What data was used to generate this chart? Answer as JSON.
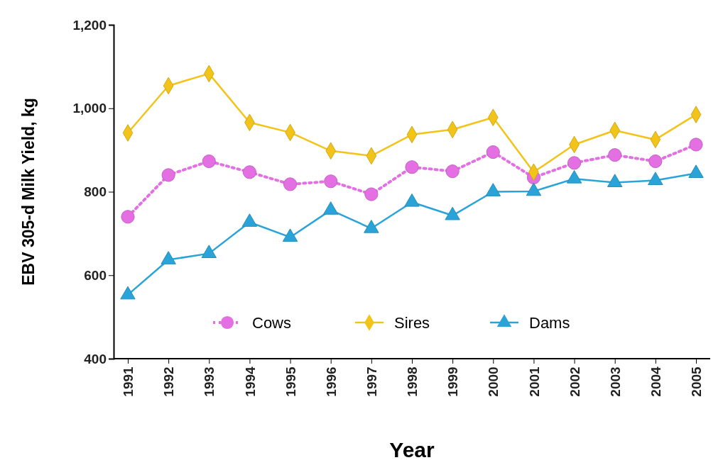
{
  "chart_data": {
    "type": "line",
    "xlabel": "Year",
    "ylabel": "EBV 305-d Milk Yield, kg",
    "categories": [
      "1991",
      "1992",
      "1993",
      "1994",
      "1995",
      "1996",
      "1997",
      "1998",
      "1999",
      "2000",
      "2001",
      "2002",
      "2003",
      "2004",
      "2005"
    ],
    "ylim": [
      400,
      1200
    ],
    "yticks": [
      400,
      600,
      800,
      {
        "value": 1000,
        "label": "1,000"
      },
      {
        "value": 1200,
        "label": "1,200"
      }
    ],
    "grid": false,
    "legend": "bottom",
    "series": [
      {
        "name": "Cows",
        "color": "#e36fe3",
        "marker": "circle",
        "line_style": "dotted",
        "values": [
          740,
          840,
          873,
          847,
          818,
          825,
          794,
          859,
          849,
          895,
          834,
          869,
          888,
          873,
          913
        ]
      },
      {
        "name": "Sires",
        "color": "#f2c318",
        "marker": "diamond",
        "line_style": "solid",
        "values": [
          941,
          1054,
          1083,
          966,
          942,
          898,
          886,
          937,
          949,
          978,
          847,
          913,
          947,
          925,
          985
        ]
      },
      {
        "name": "Dams",
        "color": "#2aa4d8",
        "marker": "triangle",
        "line_style": "solid",
        "values": [
          553,
          637,
          652,
          727,
          691,
          756,
          712,
          775,
          743,
          800,
          801,
          831,
          822,
          827,
          844
        ]
      }
    ]
  }
}
